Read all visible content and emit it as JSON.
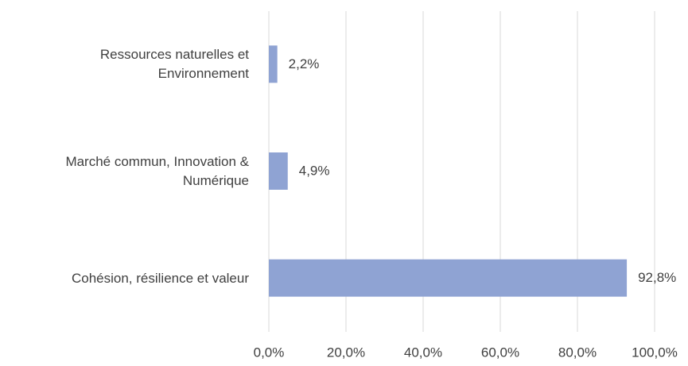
{
  "chart_data": {
    "type": "bar",
    "orientation": "horizontal",
    "categories": [
      "Ressources naturelles et Environnement",
      "Marché commun, Innovation & Numérique",
      "Cohésion, résilience et valeur"
    ],
    "values": [
      2.2,
      4.9,
      92.8
    ],
    "value_labels": [
      "2,2%",
      "4,9%",
      "92,8%"
    ],
    "color": "#8fa3d3",
    "xlim": [
      0,
      100
    ],
    "xticks": [
      {
        "value": 0,
        "label": "0,0%"
      },
      {
        "value": 20,
        "label": "20,0%"
      },
      {
        "value": 40,
        "label": "40,0%"
      },
      {
        "value": 60,
        "label": "60,0%"
      },
      {
        "value": 80,
        "label": "80,0%"
      },
      {
        "value": 100,
        "label": "100,0%"
      }
    ],
    "grid": true
  }
}
